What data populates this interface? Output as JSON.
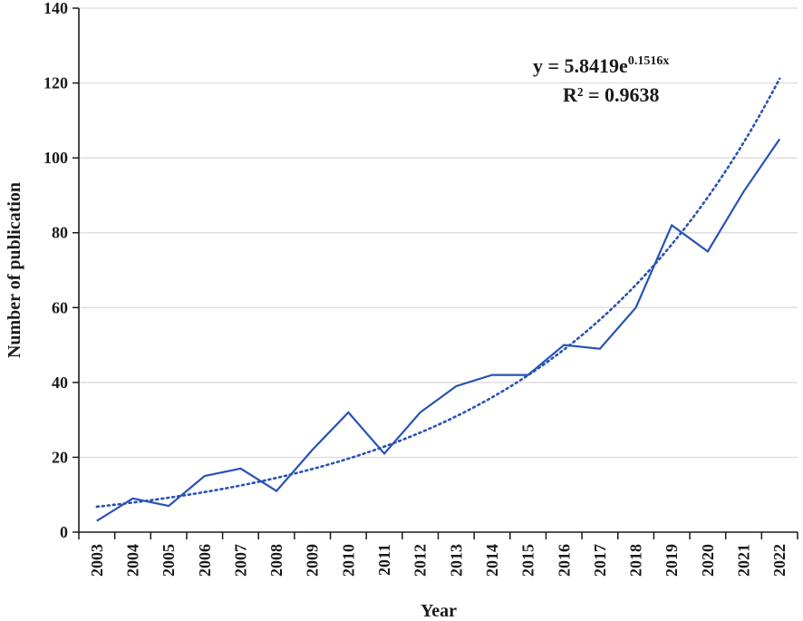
{
  "chart_data": {
    "type": "line",
    "title": "",
    "xlabel": "Year",
    "ylabel": "Number of publication",
    "categories": [
      "2003",
      "2004",
      "2005",
      "2006",
      "2007",
      "2008",
      "2009",
      "2010",
      "2011",
      "2012",
      "2013",
      "2014",
      "2015",
      "2016",
      "2017",
      "2018",
      "2019",
      "2020",
      "2021",
      "2022"
    ],
    "series": [
      {
        "values": [
          3,
          9,
          7,
          15,
          17,
          11,
          22,
          32,
          21,
          32,
          39,
          42,
          42,
          50,
          49,
          60,
          82,
          75,
          91,
          105
        ],
        "color": "#2952b5",
        "style": "solid"
      }
    ],
    "trendline": {
      "type": "exponential",
      "a": 5.8419,
      "b": 0.1516,
      "color": "#2952b5",
      "style": "dotted",
      "equation_prefix": "y = 5.8419e",
      "equation_exponent": "0.1516x",
      "r_squared_label": "R² = 0.9638"
    },
    "ylim": [
      0,
      140
    ],
    "yticks": [
      0,
      20,
      40,
      60,
      80,
      100,
      120,
      140
    ],
    "grid": true,
    "gridline_color": "#d9d9d9",
    "axis_color": "#1a1a1a"
  }
}
